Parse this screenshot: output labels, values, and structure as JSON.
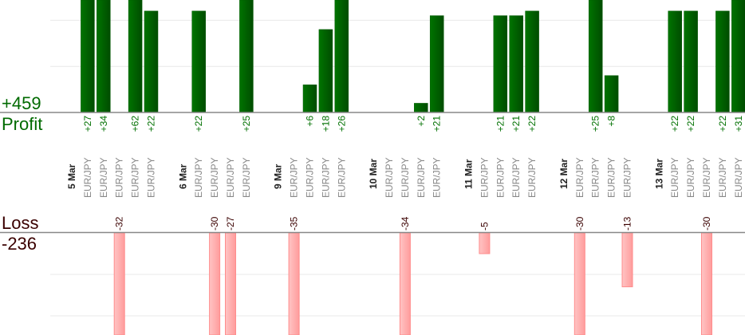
{
  "summary": {
    "profit_total": "+459",
    "profit_label": "Profit",
    "loss_label": "Loss",
    "loss_total": "-236"
  },
  "colors": {
    "profit_text": "#006a00",
    "profit_bar": "#006000",
    "loss_text": "#3a0000",
    "loss_bar": "#ffa8a8"
  },
  "chart_data": {
    "type": "bar",
    "grid": true,
    "days": [
      {
        "date": "5 Mar",
        "trades": [
          {
            "pair": "EUR/JPY",
            "value": 27
          },
          {
            "pair": "EUR/JPY",
            "value": 34
          },
          {
            "pair": "EUR/JPY",
            "value": -32
          },
          {
            "pair": "EUR/JPY",
            "value": 62
          },
          {
            "pair": "EUR/JPY",
            "value": 22
          }
        ]
      },
      {
        "date": "6 Mar",
        "trades": [
          {
            "pair": "EUR/JPY",
            "value": 22
          },
          {
            "pair": "EUR/JPY",
            "value": -30
          },
          {
            "pair": "EUR/JPY",
            "value": -27
          },
          {
            "pair": "EUR/JPY",
            "value": 25
          }
        ]
      },
      {
        "date": "9 Mar",
        "trades": [
          {
            "pair": "EUR/JPY",
            "value": -35
          },
          {
            "pair": "EUR/JPY",
            "value": 6
          },
          {
            "pair": "EUR/JPY",
            "value": 18
          },
          {
            "pair": "EUR/JPY",
            "value": 26
          }
        ]
      },
      {
        "date": "10 Mar",
        "trades": [
          {
            "pair": "EUR/JPY",
            "value": 0
          },
          {
            "pair": "EUR/JPY",
            "value": -34
          },
          {
            "pair": "EUR/JPY",
            "value": 2
          },
          {
            "pair": "EUR/JPY",
            "value": 21
          }
        ]
      },
      {
        "date": "11 Mar",
        "trades": [
          {
            "pair": "EUR/JPY",
            "value": -5
          },
          {
            "pair": "EUR/JPY",
            "value": 21
          },
          {
            "pair": "EUR/JPY",
            "value": 21
          },
          {
            "pair": "EUR/JPY",
            "value": 22
          }
        ]
      },
      {
        "date": "12 Mar",
        "trades": [
          {
            "pair": "EUR/JPY",
            "value": -30
          },
          {
            "pair": "EUR/JPY",
            "value": 25
          },
          {
            "pair": "EUR/JPY",
            "value": 8
          },
          {
            "pair": "EUR/JPY",
            "value": -13
          }
        ]
      },
      {
        "date": "13 Mar",
        "trades": [
          {
            "pair": "EUR/JPY",
            "value": 22
          },
          {
            "pair": "EUR/JPY",
            "value": 22
          },
          {
            "pair": "EUR/JPY",
            "value": -30
          },
          {
            "pair": "EUR/JPY",
            "value": 22
          },
          {
            "pair": "EUR/JPY",
            "value": 31
          }
        ]
      }
    ]
  }
}
